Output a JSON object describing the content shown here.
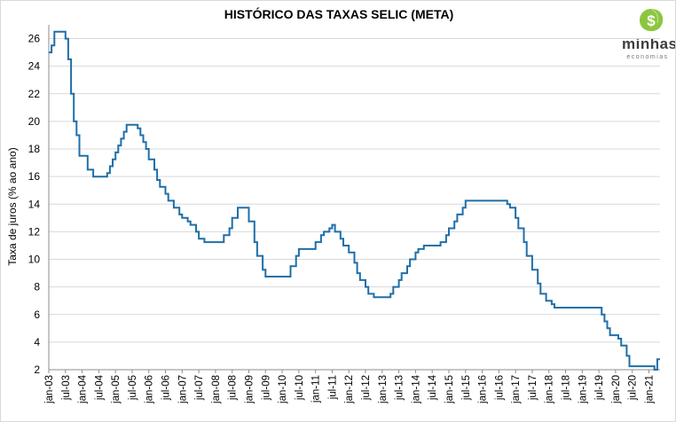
{
  "brand": {
    "name": "minhas",
    "tagline": "economias",
    "symbol": "$",
    "color": "#8cc63f"
  },
  "chart_data": {
    "type": "line",
    "title": "HISTÓRICO DAS TAXAS SELIC (META)",
    "xlabel": "",
    "ylabel": "Taxa de juros (% ao ano)",
    "ylim": [
      2,
      27
    ],
    "yticks": [
      2,
      4,
      6,
      8,
      10,
      12,
      14,
      16,
      18,
      20,
      22,
      24,
      26
    ],
    "grid": true,
    "legend": "none",
    "line_color": "#1f6fa8",
    "step": true,
    "xtick_labels": [
      "jan-03",
      "jul-03",
      "jan-04",
      "jul-04",
      "jan-05",
      "jul-05",
      "jan-06",
      "jul-06",
      "jan-07",
      "jul-07",
      "jan-08",
      "jul-08",
      "jan-09",
      "jul-09",
      "jan-10",
      "jul-10",
      "jan-11",
      "jul-11",
      "jan-12",
      "jul-12",
      "jan-13",
      "jul-13",
      "jan-14",
      "jul-14",
      "jan-15",
      "jul-15",
      "jan-16",
      "jul-16",
      "jan-17",
      "jul-17",
      "jan-18",
      "jul-18",
      "jan-19",
      "jul-19",
      "jan-20",
      "jul-20",
      "jan-21"
    ],
    "series": [
      {
        "x": [
          "jan-03",
          "feb-03",
          "mar-03",
          "jun-03",
          "jul-03",
          "aug-03",
          "sep-03",
          "oct-03",
          "nov-03",
          "dec-03",
          "mar-04",
          "apr-04",
          "may-04",
          "sep-04",
          "oct-04",
          "nov-04",
          "dec-04",
          "jan-05",
          "feb-05",
          "mar-05",
          "apr-05",
          "may-05",
          "jun-05",
          "sep-05",
          "oct-05",
          "nov-05",
          "dec-05",
          "jan-06",
          "mar-06",
          "apr-06",
          "may-06",
          "jul-06",
          "aug-06",
          "oct-06",
          "dec-06",
          "jan-07",
          "mar-07",
          "apr-07",
          "jun-07",
          "jul-07",
          "sep-07",
          "apr-08",
          "jun-08",
          "jul-08",
          "sep-08",
          "dec-08",
          "jan-09",
          "mar-09",
          "apr-09",
          "jun-09",
          "jul-09",
          "mar-10",
          "apr-10",
          "jun-10",
          "jul-10",
          "dec-10",
          "jan-11",
          "mar-11",
          "apr-11",
          "jun-11",
          "jul-11",
          "aug-11",
          "oct-11",
          "nov-11",
          "jan-12",
          "mar-12",
          "apr-12",
          "may-12",
          "jul-12",
          "aug-12",
          "sep-12",
          "oct-12",
          "dec-12",
          "mar-13",
          "apr-13",
          "may-13",
          "jul-13",
          "aug-13",
          "oct-13",
          "nov-13",
          "jan-14",
          "feb-14",
          "apr-14",
          "may-14",
          "oct-14",
          "nov-14",
          "dec-14",
          "jan-15",
          "mar-15",
          "apr-15",
          "jun-15",
          "jul-15",
          "aug-15",
          "oct-16",
          "nov-16",
          "dec-16",
          "jan-17",
          "feb-17",
          "apr-17",
          "may-17",
          "jul-17",
          "sep-17",
          "oct-17",
          "dec-17",
          "feb-18",
          "mar-18",
          "apr-18",
          "jul-19",
          "aug-19",
          "sep-19",
          "oct-19",
          "nov-19",
          "dec-19",
          "feb-20",
          "mar-20",
          "may-20",
          "jun-20",
          "aug-20",
          "mar-21",
          "apr-21"
        ],
        "values": [
          25,
          25.5,
          26.5,
          26.5,
          26,
          24.5,
          22,
          20,
          19,
          17.5,
          16.5,
          16.5,
          16,
          16,
          16.25,
          16.75,
          17.25,
          17.75,
          18.25,
          18.75,
          19.25,
          19.75,
          19.75,
          19.5,
          19,
          18.5,
          18,
          17.25,
          16.5,
          15.75,
          15.25,
          14.75,
          14.25,
          13.75,
          13.25,
          13,
          12.75,
          12.5,
          12,
          11.5,
          11.25,
          11.75,
          12.25,
          13,
          13.75,
          13.75,
          12.75,
          11.25,
          10.25,
          9.25,
          8.75,
          8.75,
          9.5,
          10.25,
          10.75,
          10.75,
          11.25,
          11.75,
          12,
          12.25,
          12.5,
          12,
          11.5,
          11,
          10.5,
          9.75,
          9,
          8.5,
          8,
          7.5,
          7.5,
          7.25,
          7.25,
          7.25,
          7.5,
          8,
          8.5,
          9,
          9.5,
          10,
          10.5,
          10.75,
          11,
          11,
          11.25,
          11.25,
          11.75,
          12.25,
          12.75,
          13.25,
          13.75,
          14.25,
          14.25,
          14,
          13.75,
          13.75,
          13,
          12.25,
          11.25,
          10.25,
          9.25,
          8.25,
          7.5,
          7,
          6.75,
          6.5,
          6.5,
          6.5,
          6,
          5.5,
          5,
          4.5,
          4.5,
          4.25,
          3.75,
          3,
          2.25,
          2.25,
          2,
          2.75
        ]
      }
    ]
  }
}
